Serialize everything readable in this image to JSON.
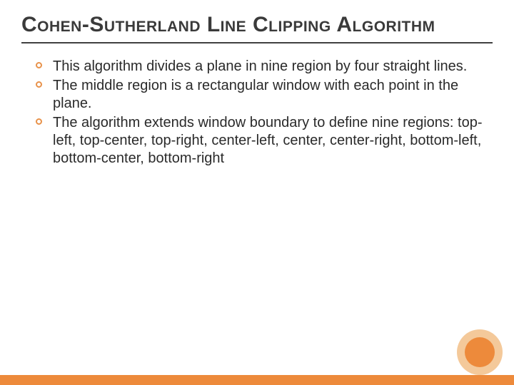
{
  "title": "Cohen-Sutherland Line Clipping Algorithm",
  "bullets": [
    "This algorithm divides a plane in nine region by four straight lines.",
    "The middle region is a rectangular  window with each point in the plane.",
    "The algorithm extends window boundary to define nine regions: top-left, top-center, top-right, center-left, center, center-right, bottom-left, bottom-center, bottom-right"
  ],
  "colors": {
    "accent": "#ed8a3b",
    "accent_light": "#f4c99a",
    "text": "#2a2a2a",
    "title": "#3a3a3a",
    "underline": "#404040"
  }
}
